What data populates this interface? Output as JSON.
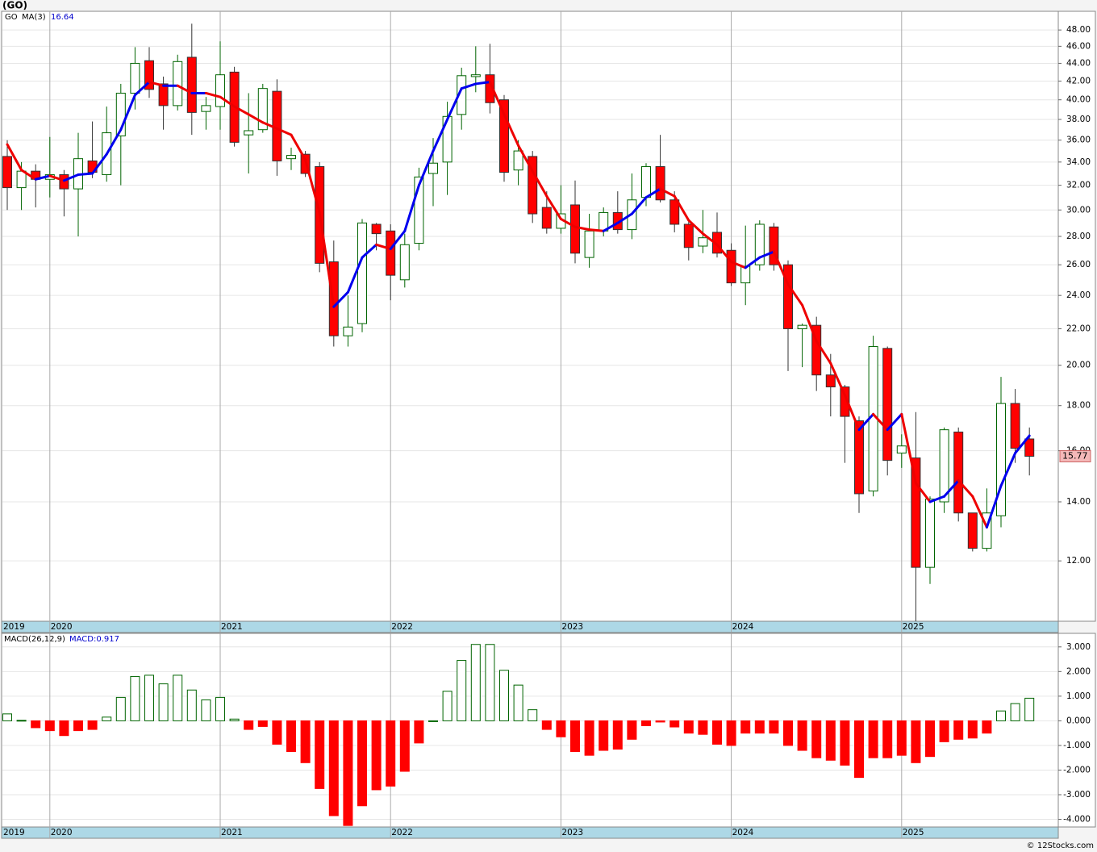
{
  "chart_data": [
    {
      "type": "candlestick",
      "title": "(GO)",
      "categories": [
        "2019",
        null,
        null,
        "2020",
        null,
        null,
        null,
        null,
        null,
        null,
        null,
        null,
        null,
        null,
        null,
        "2021",
        null,
        null,
        null,
        null,
        null,
        null,
        null,
        null,
        null,
        null,
        null,
        "2022",
        null,
        null,
        null,
        null,
        null,
        null,
        null,
        null,
        null,
        null,
        null,
        "2023",
        null,
        null,
        null,
        null,
        null,
        null,
        null,
        null,
        null,
        null,
        null,
        "2024",
        null,
        null,
        null,
        null,
        null,
        null,
        null,
        null,
        null,
        null,
        null,
        "2025",
        null,
        null,
        null,
        null,
        null,
        null,
        null,
        null,
        null
      ],
      "series": [
        {
          "name": "GO",
          "up_color": "#006400",
          "down_color": "#ff0000",
          "open": [
            34.5,
            31.8,
            33.2,
            32.5,
            32.9,
            31.7,
            34.1,
            32.9,
            36.4,
            40.7,
            44.3,
            41.7,
            39.4,
            44.7,
            38.8,
            39.3,
            43,
            36.5,
            37,
            40.9,
            34.3,
            34.7,
            33.6,
            26.2,
            21.6,
            22.3,
            28.9,
            28.4,
            25,
            27.5,
            33,
            34,
            38.5,
            42.5,
            42.7,
            40,
            33.3,
            34.5,
            30.2,
            28.6,
            30.4,
            26.5,
            28.4,
            29.8,
            28.5,
            31,
            33.6,
            30.8,
            28.9,
            27.3,
            28.3,
            27,
            24.8,
            26,
            28.7,
            26,
            22,
            22.2,
            19.5,
            18.9,
            17.3,
            14.4,
            20.9,
            15.9,
            15.7,
            11.8,
            14,
            16.8,
            13.6,
            12.4,
            13.5,
            18.1,
            16.5
          ],
          "high": [
            36,
            34,
            33.8,
            36.3,
            33.3,
            36.7,
            37.8,
            39.3,
            41.7,
            45.9,
            45.9,
            42.5,
            45,
            48.8,
            40.3,
            46.6,
            43.6,
            40.7,
            41.7,
            42.2,
            35.3,
            35,
            34,
            27.7,
            24,
            29.3,
            29,
            28.9,
            28.2,
            33.5,
            36.2,
            39.8,
            43.5,
            46,
            46.3,
            40.5,
            36,
            35,
            31.5,
            32,
            32.4,
            29.7,
            30.2,
            31.5,
            33,
            33.9,
            36.5,
            31.5,
            29.3,
            30,
            29.8,
            27.5,
            28.8,
            29.2,
            29,
            26.3,
            22.3,
            22.7,
            20.6,
            19,
            17.5,
            21.6,
            21,
            16.7,
            17.7,
            14.2,
            17,
            17,
            13.6,
            14.5,
            19.4,
            18.8,
            17
          ],
          "low": [
            30,
            30,
            30.2,
            31,
            29.5,
            28,
            32.6,
            32.3,
            32,
            39,
            40.2,
            37,
            38.9,
            36.5,
            37,
            37,
            35.4,
            33,
            36.7,
            32.8,
            33.3,
            32.7,
            25.5,
            21,
            21,
            21.8,
            27,
            23.7,
            24.5,
            27,
            30.3,
            31.2,
            37,
            40.8,
            38.6,
            32.3,
            32,
            29,
            28.2,
            28.2,
            26.1,
            25.8,
            28,
            28.2,
            27.8,
            30.3,
            30.6,
            28.3,
            26.3,
            26.8,
            26.5,
            24.6,
            23.4,
            25.6,
            25.6,
            19.7,
            19.9,
            18.7,
            17.5,
            15.5,
            13.6,
            14.2,
            15,
            15.3,
            10.25,
            11.3,
            13.6,
            13.3,
            12.3,
            12.3,
            13.1,
            15.5,
            15
          ],
          "close": [
            31.8,
            33.2,
            32.5,
            32.9,
            31.7,
            34.3,
            33.1,
            36.7,
            40.7,
            44,
            41.1,
            39.4,
            44.2,
            38.7,
            39.4,
            42.7,
            35.8,
            36.9,
            41.2,
            34.1,
            34.6,
            33,
            26.1,
            21.6,
            22.1,
            29,
            28.2,
            25.3,
            27.4,
            32.7,
            33.9,
            38.3,
            42.6,
            42.7,
            39.7,
            33.1,
            35,
            29.7,
            28.6,
            29.7,
            26.8,
            28.4,
            29.8,
            28.5,
            30.8,
            33.6,
            30.8,
            28.9,
            27.2,
            27.9,
            26.8,
            24.8,
            25.9,
            28.9,
            26,
            22,
            22.2,
            19.5,
            18.9,
            17.5,
            14.3,
            21,
            15.6,
            16.2,
            11.8,
            14.1,
            16.9,
            13.6,
            12.4,
            13.6,
            18.1,
            16.1,
            15.77
          ],
          "last_label": "15.77"
        }
      ],
      "ma": {
        "name": "MA(3)",
        "label": "16.64",
        "up_color": "#0000ee",
        "down_color": "#ee0000",
        "values": [
          35.6,
          33.3,
          32.5,
          32.8,
          32.4,
          32.9,
          33.0,
          34.7,
          37,
          40.5,
          41.9,
          41.5,
          41.5,
          40.7,
          40.7,
          40.3,
          39.3,
          38.5,
          37.7,
          37.1,
          36.5,
          34.2,
          29.8,
          23.3,
          24.2,
          26.5,
          27.4,
          27.1,
          28.4,
          32,
          35,
          38,
          41.2,
          41.7,
          41.9,
          38.5,
          35.5,
          33.2,
          31.1,
          29.3,
          28.7,
          28.5,
          28.4,
          29,
          29.7,
          31,
          31.7,
          31.1,
          29.2,
          28.2,
          27.4,
          26.2,
          25.8,
          26.5,
          26.9,
          24.7,
          23.4,
          21.3,
          20.1,
          18.5,
          16.9,
          17.6,
          16.9,
          17.6,
          14.7,
          14.0,
          14.2,
          14.8,
          14.2,
          13.1,
          14.6,
          15.9,
          16.64
        ]
      },
      "log_scale": true,
      "ylim": [
        10.25,
        50.4
      ],
      "yticks": [
        {
          "value": 12,
          "label": "12.00"
        },
        {
          "value": 14,
          "label": "14.00"
        },
        {
          "value": 16,
          "label": "16.00"
        },
        {
          "value": 18,
          "label": "18.00"
        },
        {
          "value": 20,
          "label": "20.00"
        },
        {
          "value": 22,
          "label": "22.00"
        },
        {
          "value": 24,
          "label": "24.00"
        },
        {
          "value": 26,
          "label": "26.00"
        },
        {
          "value": 28,
          "label": "28.00"
        },
        {
          "value": 30,
          "label": "30.00"
        },
        {
          "value": 32,
          "label": "32.00"
        },
        {
          "value": 34,
          "label": "34.00"
        },
        {
          "value": 36,
          "label": "36.00"
        },
        {
          "value": 38,
          "label": "38.00"
        },
        {
          "value": 40,
          "label": "40.00"
        },
        {
          "value": 42,
          "label": "42.00"
        },
        {
          "value": 44,
          "label": "44.00"
        },
        {
          "value": 46,
          "label": "46.00"
        },
        {
          "value": 48,
          "label": "48.00"
        }
      ],
      "grid": true
    },
    {
      "type": "bar",
      "title": "MACD(26,12,9)",
      "legend": "MACD:0.917",
      "categories": [
        "2019",
        null,
        null,
        "2020",
        null,
        null,
        null,
        null,
        null,
        null,
        null,
        null,
        null,
        null,
        null,
        "2021",
        null,
        null,
        null,
        null,
        null,
        null,
        null,
        null,
        null,
        null,
        null,
        "2022",
        null,
        null,
        null,
        null,
        null,
        null,
        null,
        null,
        null,
        null,
        null,
        "2023",
        null,
        null,
        null,
        null,
        null,
        null,
        null,
        null,
        null,
        null,
        null,
        "2024",
        null,
        null,
        null,
        null,
        null,
        null,
        null,
        null,
        null,
        null,
        null,
        "2025",
        null,
        null,
        null,
        null,
        null,
        null,
        null,
        null,
        null
      ],
      "values": [
        0.28,
        0.02,
        -0.28,
        -0.4,
        -0.6,
        -0.4,
        -0.35,
        0.15,
        0.95,
        1.8,
        1.85,
        1.5,
        1.85,
        1.25,
        0.85,
        0.95,
        0.07,
        -0.35,
        -0.23,
        -0.95,
        -1.25,
        -1.7,
        -2.75,
        -3.85,
        -4.25,
        -3.45,
        -2.8,
        -2.65,
        -2.05,
        -0.9,
        0.0,
        1.2,
        2.45,
        3.1,
        3.1,
        2.05,
        1.45,
        0.45,
        -0.35,
        -0.65,
        -1.25,
        -1.4,
        -1.2,
        -1.15,
        -0.75,
        -0.2,
        -0.05,
        -0.25,
        -0.5,
        -0.55,
        -0.95,
        -1.0,
        -0.5,
        -0.5,
        -0.5,
        -1.0,
        -1.2,
        -1.5,
        -1.6,
        -1.8,
        -2.3,
        -1.5,
        -1.5,
        -1.4,
        -1.7,
        -1.45,
        -0.85,
        -0.75,
        -0.7,
        -0.5,
        0.4,
        0.7,
        0.917
      ],
      "up_color": "#006400",
      "down_color": "#ff0000",
      "ylim": [
        -4.31,
        3.55
      ],
      "yticks": [
        {
          "value": 3,
          "label": "3.000"
        },
        {
          "value": 2,
          "label": "2.000"
        },
        {
          "value": 1,
          "label": "1.000"
        },
        {
          "value": 0,
          "label": "0.000"
        },
        {
          "value": -1,
          "label": "-1.000"
        },
        {
          "value": -2,
          "label": "-2.000"
        },
        {
          "value": -3,
          "label": "-3.000"
        },
        {
          "value": -4,
          "label": "-4.000"
        }
      ],
      "grid": true
    }
  ],
  "footer": "© 12Stocks.com"
}
